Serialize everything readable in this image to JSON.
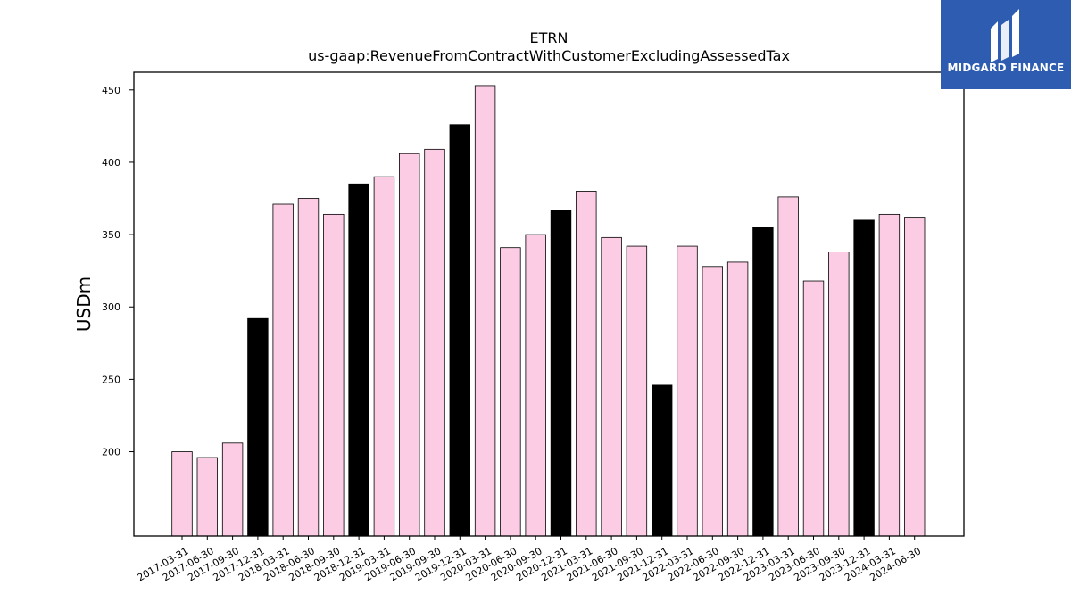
{
  "chart_data": {
    "type": "bar",
    "title": "ETRN",
    "subtitle": "us-gaap:RevenueFromContractWithCustomerExcludingAssessedTax",
    "ylabel": "USDm",
    "xlabel": "",
    "ylim": [
      150,
      470
    ],
    "yticks": [
      200,
      250,
      300,
      350,
      400,
      450
    ],
    "grid": false,
    "categories": [
      "2017-03-31",
      "2017-06-30",
      "2017-09-30",
      "2017-12-31",
      "2018-03-31",
      "2018-06-30",
      "2018-09-30",
      "2018-12-31",
      "2019-03-31",
      "2019-06-30",
      "2019-09-30",
      "2019-12-31",
      "2020-03-31",
      "2020-06-30",
      "2020-09-30",
      "2020-12-31",
      "2021-03-31",
      "2021-06-30",
      "2021-09-30",
      "2021-12-31",
      "2022-03-31",
      "2022-06-30",
      "2022-09-30",
      "2022-12-31",
      "2023-03-31",
      "2023-06-30",
      "2023-09-30",
      "2023-12-31",
      "2024-03-31",
      "2024-06-30"
    ],
    "values": [
      200,
      196,
      206,
      292,
      371,
      375,
      364,
      385,
      390,
      406,
      409,
      426,
      453,
      341,
      350,
      367,
      380,
      348,
      342,
      246,
      342,
      328,
      331,
      355,
      376,
      318,
      338,
      360,
      364,
      362
    ],
    "colors": {
      "quarter": "#fccce4",
      "year_end": "#000000",
      "edge": "#000000"
    }
  },
  "logo": {
    "text": "MIDGARD FINANCE",
    "background": "#2d5cb0"
  }
}
